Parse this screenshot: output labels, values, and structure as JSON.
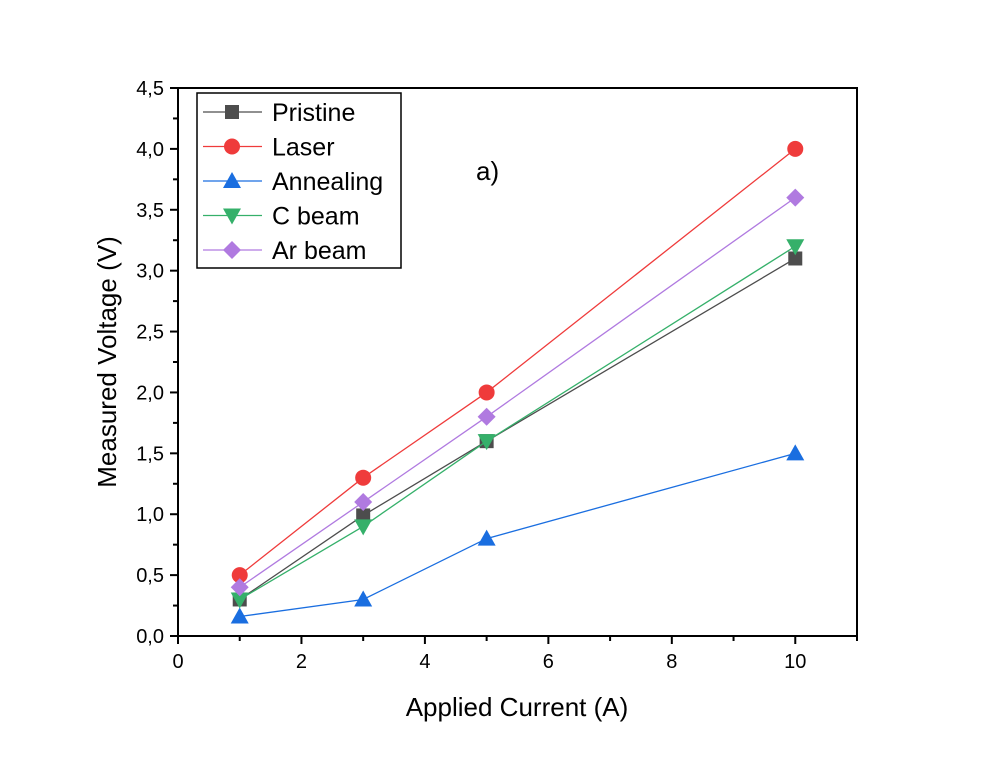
{
  "chart_data": {
    "type": "line",
    "annotation": "a)",
    "xlabel": "Applied Current (A)",
    "ylabel": "Measured Voltage (V)",
    "xlim": [
      0,
      11
    ],
    "ylim": [
      0,
      4.5
    ],
    "xticks": [
      "0",
      "2",
      "4",
      "6",
      "8",
      "10"
    ],
    "yticks": [
      "0,0",
      "0,5",
      "1,0",
      "1,5",
      "2,0",
      "2,5",
      "3,0",
      "3,5",
      "4,0",
      "4,5"
    ],
    "grid": false,
    "legend_position": "top-left",
    "x": [
      1,
      3,
      5,
      10
    ],
    "series": [
      {
        "name": "Pristine",
        "marker": "square",
        "color": "#4d4d4d",
        "values": [
          0.3,
          0.99,
          1.6,
          3.1
        ]
      },
      {
        "name": "Laser",
        "marker": "circle",
        "color": "#ef3b3b",
        "values": [
          0.5,
          1.3,
          2.0,
          4.0
        ]
      },
      {
        "name": "Annealing",
        "marker": "triangle-up",
        "color": "#1a6ee0",
        "values": [
          0.16,
          0.3,
          0.8,
          1.5
        ]
      },
      {
        "name": "C beam",
        "marker": "triangle-down",
        "color": "#35b06a",
        "values": [
          0.3,
          0.9,
          1.6,
          3.2
        ]
      },
      {
        "name": "Ar beam",
        "marker": "diamond",
        "color": "#b07ae0",
        "values": [
          0.4,
          1.1,
          1.8,
          3.6
        ]
      }
    ]
  }
}
